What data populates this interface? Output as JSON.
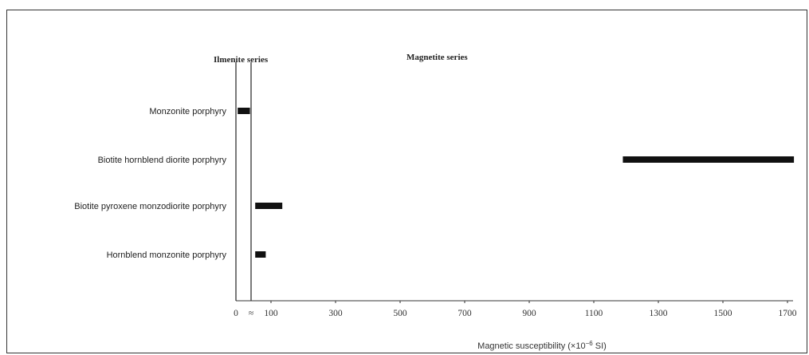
{
  "chart_data": {
    "type": "bar",
    "orientation": "horizontal-range",
    "xlabel": "Magnetic susceptibility (×10",
    "xlabel_sup": "−6",
    "xlabel_unit": " SI)",
    "xlim": [
      0,
      1700
    ],
    "x_ticks": [
      {
        "value": 100,
        "label": "100"
      },
      {
        "value": 300,
        "label": "300"
      },
      {
        "value": 500,
        "label": "500"
      },
      {
        "value": 700,
        "label": "700"
      },
      {
        "value": 900,
        "label": "900"
      },
      {
        "value": 1100,
        "label": "1100"
      },
      {
        "value": 1300,
        "label": "1300"
      },
      {
        "value": 1500,
        "label": "1500"
      },
      {
        "value": 1700,
        "label": "1700"
      }
    ],
    "origin_label": "0",
    "boundary_label": "≈",
    "regions": [
      {
        "name": "Ilmenite series",
        "range": [
          0,
          50
        ]
      },
      {
        "name": "Magnetite series",
        "range": [
          50,
          1700
        ]
      }
    ],
    "categories": [
      "Monzonite porphyry",
      "Biotite hornblend diorite porphyry",
      "Biotite pyroxene monzodiorite porphyry",
      "Hornblend monzonite porphyry"
    ],
    "ranges": [
      {
        "category": "Monzonite porphyry",
        "min": 5,
        "max": 40
      },
      {
        "category": "Biotite hornblend diorite porphyry",
        "min": 1190,
        "max": 1720
      },
      {
        "category": "Biotite pyroxene monzodiorite porphyry",
        "min": 55,
        "max": 135
      },
      {
        "category": "Hornblend monzonite porphyry",
        "min": 55,
        "max": 85
      }
    ],
    "color": "#111111",
    "grid": false,
    "legend": "none"
  }
}
